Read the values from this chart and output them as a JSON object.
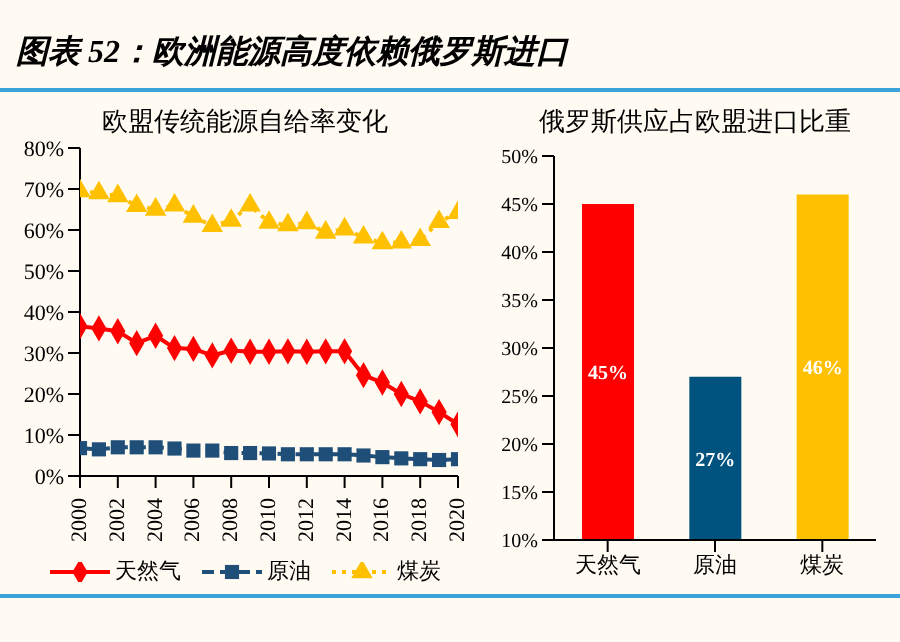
{
  "chart_data": [
    {
      "type": "line",
      "title": "图表 52：欧洲能源高度依赖俄罗斯进口",
      "subtitle": "欧盟传统能源自给率变化",
      "x": [
        2000,
        2001,
        2002,
        2003,
        2004,
        2005,
        2006,
        2007,
        2008,
        2009,
        2010,
        2011,
        2012,
        2013,
        2014,
        2015,
        2016,
        2017,
        2018,
        2019,
        2020
      ],
      "series": [
        {
          "name": "天然气",
          "color": "#ff0000",
          "marker": "diamond",
          "line_style": "solid",
          "values": [
            36.5,
            36,
            35.3,
            32.4,
            34.2,
            31.2,
            31,
            29.4,
            30.6,
            30.3,
            30.3,
            30.4,
            30.3,
            30.4,
            30.4,
            24.6,
            22.8,
            20,
            18.2,
            15.6,
            12.6
          ]
        },
        {
          "name": "原油",
          "color": "#1f4e79",
          "marker": "square",
          "line_style": "dashed",
          "values": [
            6.8,
            6.5,
            7,
            7,
            7,
            6.7,
            6.2,
            6.2,
            5.6,
            5.6,
            5.5,
            5.3,
            5.3,
            5.3,
            5.3,
            5,
            4.6,
            4.3,
            4.1,
            3.9,
            4.1
          ]
        },
        {
          "name": "煤炭",
          "color": "#ffc000",
          "marker": "triangle",
          "line_style": "dotted",
          "values": [
            69.5,
            69,
            68.3,
            65.9,
            65,
            66,
            63.3,
            61,
            62.3,
            66,
            61.8,
            61.2,
            61.7,
            59.4,
            60.2,
            58.2,
            56.8,
            57,
            57.6,
            62,
            64.2
          ]
        }
      ],
      "xlim": [
        2000,
        2020
      ],
      "xticks": [
        2000,
        2002,
        2004,
        2006,
        2008,
        2010,
        2012,
        2014,
        2016,
        2018,
        2020
      ],
      "ylim": [
        0,
        80
      ],
      "yticks": [
        {
          "value": 0,
          "label": "0%"
        },
        {
          "value": 10,
          "label": "10%"
        },
        {
          "value": 20,
          "label": "20%"
        },
        {
          "value": 30,
          "label": "30%"
        },
        {
          "value": 40,
          "label": "40%"
        },
        {
          "value": 50,
          "label": "50%"
        },
        {
          "value": 60,
          "label": "60%"
        },
        {
          "value": 70,
          "label": "70%"
        },
        {
          "value": 80,
          "label": "80%"
        }
      ],
      "legend": "bottom"
    },
    {
      "type": "bar",
      "title": "俄罗斯供应占欧盟进口比重",
      "categories": [
        "天然气",
        "原油",
        "煤炭"
      ],
      "values": [
        45,
        27,
        46
      ],
      "colors": [
        "#ff0000",
        "#00527f",
        "#ffc000"
      ],
      "value_labels": [
        "45%",
        "27%",
        "46%"
      ],
      "ylim": [
        10,
        50
      ],
      "yticks": [
        {
          "value": 10,
          "label": "10%"
        },
        {
          "value": 15,
          "label": "15%"
        },
        {
          "value": 20,
          "label": "20%"
        },
        {
          "value": 25,
          "label": "25%"
        },
        {
          "value": 30,
          "label": "30%"
        },
        {
          "value": 35,
          "label": "35%"
        },
        {
          "value": 40,
          "label": "40%"
        },
        {
          "value": 45,
          "label": "45%"
        },
        {
          "value": 50,
          "label": "50%"
        }
      ]
    }
  ]
}
